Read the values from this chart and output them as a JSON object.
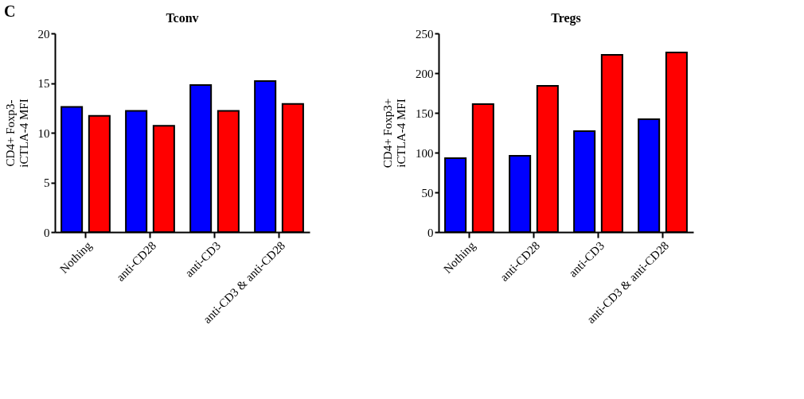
{
  "chart_data": [
    {
      "type": "bar",
      "title": "Tconv",
      "ylabel": "CD4+ Foxp3-\niCTLA-4 MFI",
      "annotations": [
        "C"
      ],
      "categories": [
        "Nothing",
        "anti-CD28",
        "anti-CD3",
        "anti-CD3 & anti-CD28"
      ],
      "series": [
        {
          "color": "#0000ff",
          "values": [
            12.6,
            12.2,
            14.8,
            15.2
          ]
        },
        {
          "color": "#ff0000",
          "values": [
            11.7,
            10.7,
            12.2,
            12.9
          ]
        }
      ],
      "ylim": [
        0,
        20
      ],
      "yticks": [
        0,
        5,
        10,
        15,
        20
      ],
      "grid": false
    },
    {
      "type": "bar",
      "title": "Tregs",
      "ylabel": "CD4+ Foxp3+\niCTLA-4 MFI",
      "categories": [
        "Nothing",
        "anti-CD28",
        "anti-CD3",
        "anti-CD3 & anti-CD28"
      ],
      "series": [
        {
          "color": "#0000ff",
          "values": [
            93,
            96,
            127,
            142
          ]
        },
        {
          "color": "#ff0000",
          "values": [
            161,
            184,
            223,
            226
          ]
        }
      ],
      "ylim": [
        0,
        250
      ],
      "yticks": [
        0,
        50,
        100,
        150,
        200,
        250
      ],
      "grid": false
    }
  ]
}
